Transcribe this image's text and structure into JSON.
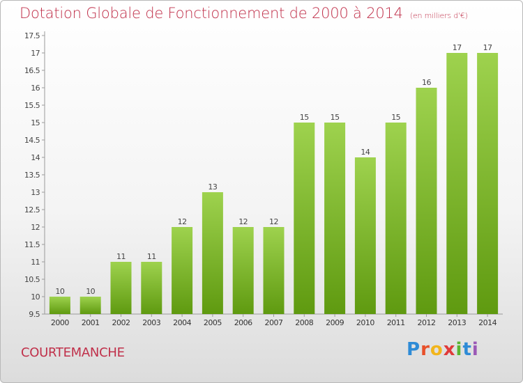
{
  "header": {
    "title": "Dotation Globale de Fonctionnement de 2000 à 2014",
    "unit": "(en milliers d'€)"
  },
  "footer": {
    "commune": "COURTEMANCHE",
    "logo_letters": [
      "P",
      "r",
      "o",
      "x",
      "i",
      "t",
      "i"
    ],
    "logo_colors": [
      "#2e8bd6",
      "#e8502a",
      "#f2b51c",
      "#e03a3a",
      "#5bb531",
      "#2e8bd6",
      "#9b59b6"
    ]
  },
  "chart_data": {
    "type": "bar",
    "title": "Dotation Globale de Fonctionnement de 2000 à 2014",
    "unit": "(en milliers d'€)",
    "categories": [
      "2000",
      "2001",
      "2002",
      "2003",
      "2004",
      "2005",
      "2006",
      "2007",
      "2008",
      "2009",
      "2010",
      "2011",
      "2012",
      "2013",
      "2014"
    ],
    "values": [
      10,
      10,
      11,
      11,
      12,
      13,
      12,
      12,
      15,
      15,
      14,
      15,
      16,
      17,
      17
    ],
    "ylim": [
      9.5,
      17.5
    ],
    "yticks": [
      "9.5",
      "10",
      "10.5",
      "11",
      "11.5",
      "12",
      "12.5",
      "13",
      "13.5",
      "14",
      "14.5",
      "15",
      "15.5",
      "16",
      "16.5",
      "17",
      "17.5"
    ],
    "grid": false,
    "bar_color_top": "#9ed24e",
    "bar_color_bottom": "#5f9a10"
  }
}
